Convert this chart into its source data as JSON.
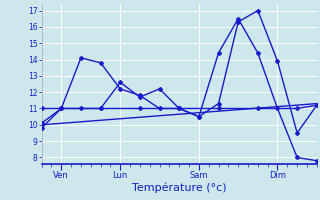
{
  "background_color": "#cce8ec",
  "grid_color": "#ffffff",
  "line_color": "#1a1acc",
  "xlabel": "Température (°c)",
  "xlabel_fontsize": 8,
  "yticks": [
    8,
    9,
    10,
    11,
    12,
    13,
    14,
    15,
    16,
    17
  ],
  "ylim": [
    7.6,
    17.4
  ],
  "xlim": [
    0,
    28
  ],
  "xtick_positions": [
    2,
    8,
    16,
    24
  ],
  "xtick_labels": [
    "Ven",
    "Lun",
    "Sam",
    "Dim"
  ],
  "series1_x": [
    0,
    2,
    4,
    6,
    8,
    10,
    12,
    14,
    16,
    18,
    20,
    22,
    24,
    26,
    28
  ],
  "series1_y": [
    10.1,
    11.0,
    14.1,
    13.8,
    12.2,
    11.8,
    11.0,
    11.0,
    10.5,
    11.3,
    16.3,
    17.0,
    13.9,
    9.5,
    11.2
  ],
  "series2_x": [
    0,
    2,
    4,
    6,
    8,
    10,
    12,
    14,
    16,
    18,
    20,
    22,
    24,
    26,
    28
  ],
  "series2_y": [
    9.8,
    11.0,
    11.0,
    11.0,
    12.6,
    11.7,
    12.2,
    11.0,
    10.5,
    14.4,
    16.5,
    14.4,
    11.0,
    8.0,
    7.8
  ],
  "series3_x": [
    0,
    2,
    6,
    10,
    14,
    18,
    22,
    26,
    28
  ],
  "series3_y": [
    11.0,
    11.0,
    11.0,
    11.0,
    11.0,
    11.0,
    11.0,
    11.0,
    11.2
  ],
  "series4_x": [
    0,
    28
  ],
  "series4_y": [
    10.0,
    11.3
  ]
}
